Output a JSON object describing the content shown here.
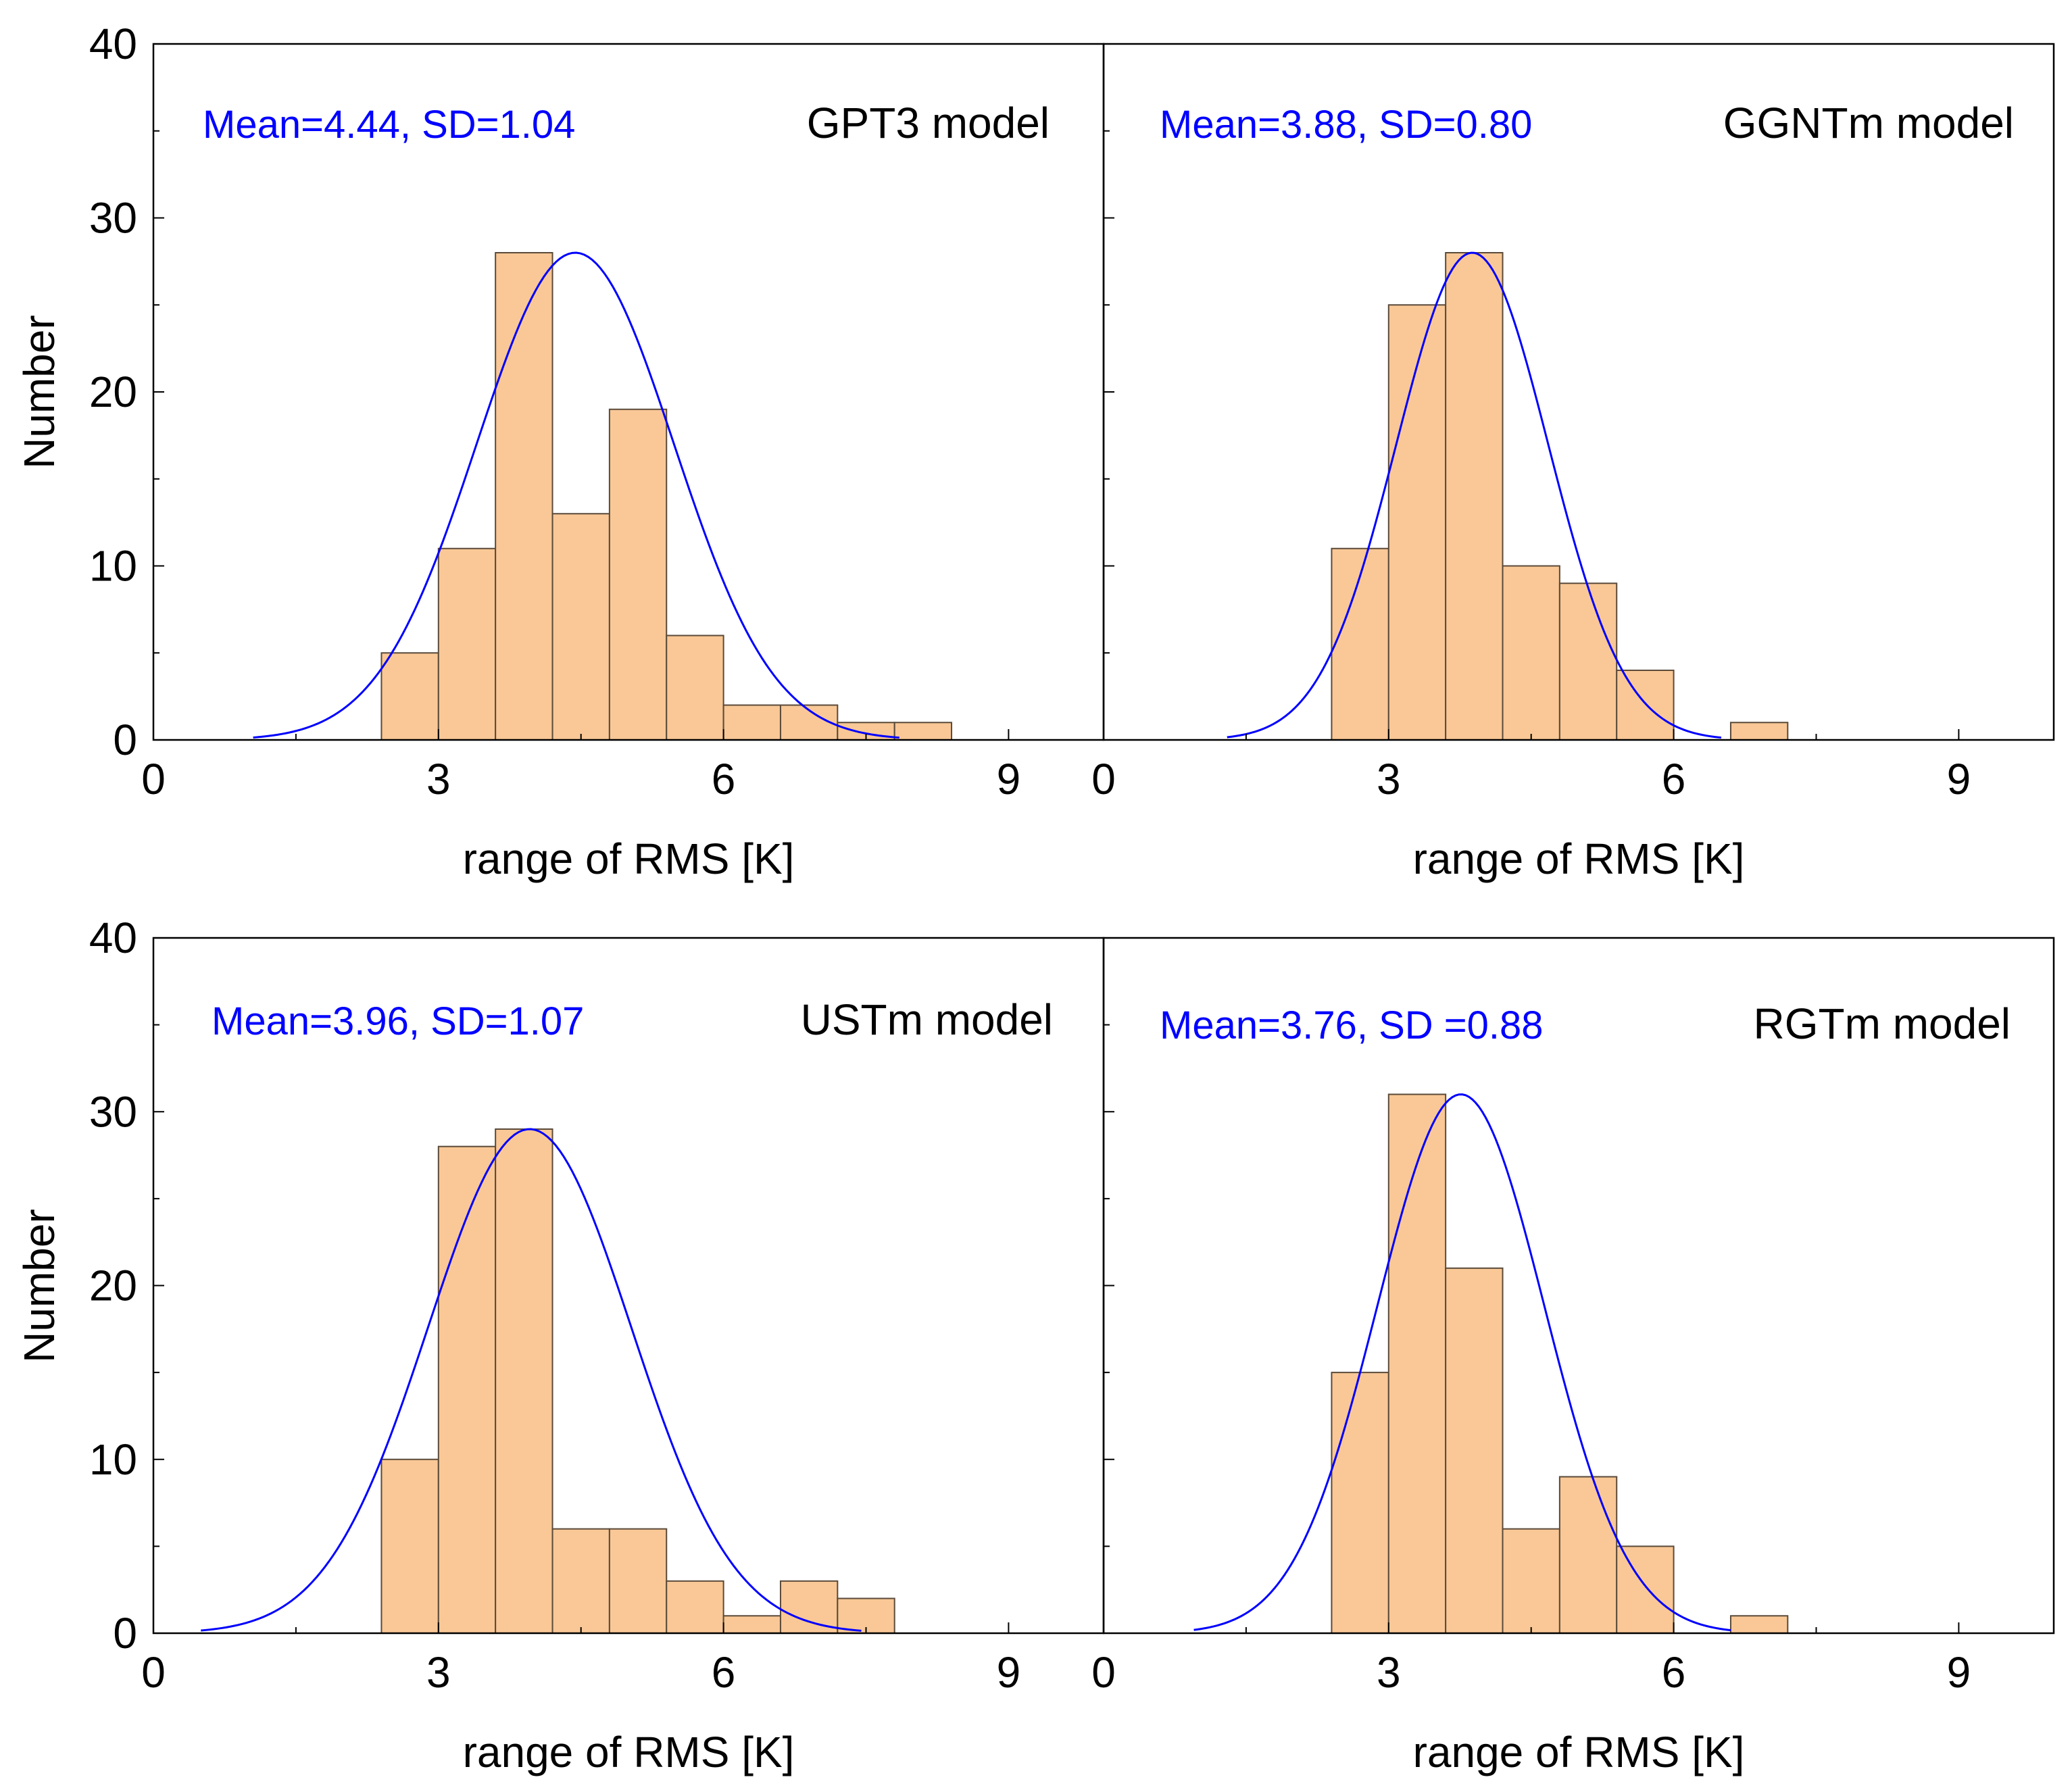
{
  "figure": {
    "background": "#ffffff"
  },
  "style": {
    "bar_fill": "#f9c896",
    "bar_stroke": "#5a4a3a",
    "curve_color": "#0000ff",
    "axis_color": "#000000",
    "stats_color": "#0000ff"
  },
  "chart_data": [
    {
      "type": "bar",
      "title": "GPT3 model",
      "stats_label": "Mean=4.44, SD=1.04",
      "xlabel": "range of RMS [K]",
      "ylabel": "Number",
      "xlim": [
        0,
        10
      ],
      "ylim": [
        0,
        40
      ],
      "xticks": [
        0,
        3,
        6,
        9
      ],
      "xtick_labels": [
        "0",
        "3",
        "6",
        "9"
      ],
      "yticks": [
        0,
        10,
        20,
        30,
        40
      ],
      "ytick_labels": [
        "0",
        "10",
        "20",
        "30",
        "40"
      ],
      "bins": [
        {
          "start": 2.4,
          "end": 3.0,
          "count": 5
        },
        {
          "start": 3.0,
          "end": 3.6,
          "count": 11
        },
        {
          "start": 3.6,
          "end": 4.2,
          "count": 28
        },
        {
          "start": 4.2,
          "end": 4.8,
          "count": 13
        },
        {
          "start": 4.8,
          "end": 5.4,
          "count": 19
        },
        {
          "start": 5.4,
          "end": 6.0,
          "count": 6
        },
        {
          "start": 6.0,
          "end": 6.6,
          "count": 2
        },
        {
          "start": 6.6,
          "end": 7.2,
          "count": 2
        },
        {
          "start": 7.2,
          "end": 7.8,
          "count": 1
        },
        {
          "start": 7.8,
          "end": 8.4,
          "count": 1
        }
      ],
      "normal_curve": {
        "mean": 4.44,
        "sd": 1.04,
        "peak": 28,
        "x_range": [
          1.05,
          7.85
        ]
      }
    },
    {
      "type": "bar",
      "title": "GGNTm model",
      "stats_label": "Mean=3.88, SD=0.80",
      "xlabel": "range of RMS [K]",
      "ylabel": "",
      "xlim": [
        0,
        10
      ],
      "ylim": [
        0,
        40
      ],
      "xticks": [
        0,
        3,
        6,
        9
      ],
      "xtick_labels": [
        "0",
        "3",
        "6",
        "9"
      ],
      "yticks": [
        0,
        10,
        20,
        30,
        40
      ],
      "ytick_labels": [],
      "bins": [
        {
          "start": 2.4,
          "end": 3.0,
          "count": 11
        },
        {
          "start": 3.0,
          "end": 3.6,
          "count": 25
        },
        {
          "start": 3.6,
          "end": 4.2,
          "count": 28
        },
        {
          "start": 4.2,
          "end": 4.8,
          "count": 10
        },
        {
          "start": 4.8,
          "end": 5.4,
          "count": 9
        },
        {
          "start": 5.4,
          "end": 6.0,
          "count": 4
        },
        {
          "start": 6.6,
          "end": 7.2,
          "count": 1
        }
      ],
      "normal_curve": {
        "mean": 3.88,
        "sd": 0.8,
        "peak": 28,
        "x_range": [
          1.3,
          6.5
        ]
      }
    },
    {
      "type": "bar",
      "title": "USTm model",
      "stats_label": "Mean=3.96, SD=1.07",
      "xlabel": "range of RMS [K]",
      "ylabel": "Number",
      "xlim": [
        0,
        10
      ],
      "ylim": [
        0,
        40
      ],
      "xticks": [
        0,
        3,
        6,
        9
      ],
      "xtick_labels": [
        "0",
        "3",
        "6",
        "9"
      ],
      "yticks": [
        0,
        10,
        20,
        30,
        40
      ],
      "ytick_labels": [
        "0",
        "10",
        "20",
        "30",
        "40"
      ],
      "bins": [
        {
          "start": 2.4,
          "end": 3.0,
          "count": 10
        },
        {
          "start": 3.0,
          "end": 3.6,
          "count": 28
        },
        {
          "start": 3.6,
          "end": 4.2,
          "count": 29
        },
        {
          "start": 4.2,
          "end": 4.8,
          "count": 6
        },
        {
          "start": 4.8,
          "end": 5.4,
          "count": 6
        },
        {
          "start": 5.4,
          "end": 6.0,
          "count": 3
        },
        {
          "start": 6.0,
          "end": 6.6,
          "count": 1
        },
        {
          "start": 6.6,
          "end": 7.2,
          "count": 3
        },
        {
          "start": 7.2,
          "end": 7.8,
          "count": 2
        }
      ],
      "normal_curve": {
        "mean": 3.96,
        "sd": 1.07,
        "peak": 29,
        "x_range": [
          0.5,
          7.45
        ]
      }
    },
    {
      "type": "bar",
      "title": "RGTm model",
      "stats_label": "Mean=3.76, SD  =0.88",
      "xlabel": "range of RMS [K]",
      "ylabel": "",
      "xlim": [
        0,
        10
      ],
      "ylim": [
        0,
        40
      ],
      "xticks": [
        0,
        3,
        6,
        9
      ],
      "xtick_labels": [
        "0",
        "3",
        "6",
        "9"
      ],
      "yticks": [
        0,
        10,
        20,
        30,
        40
      ],
      "ytick_labels": [],
      "bins": [
        {
          "start": 2.4,
          "end": 3.0,
          "count": 15
        },
        {
          "start": 3.0,
          "end": 3.6,
          "count": 31
        },
        {
          "start": 3.6,
          "end": 4.2,
          "count": 21
        },
        {
          "start": 4.2,
          "end": 4.8,
          "count": 6
        },
        {
          "start": 4.8,
          "end": 5.4,
          "count": 9
        },
        {
          "start": 5.4,
          "end": 6.0,
          "count": 5
        },
        {
          "start": 6.6,
          "end": 7.2,
          "count": 1
        }
      ],
      "normal_curve": {
        "mean": 3.76,
        "sd": 0.88,
        "peak": 31,
        "x_range": [
          0.95,
          6.6
        ]
      }
    }
  ]
}
